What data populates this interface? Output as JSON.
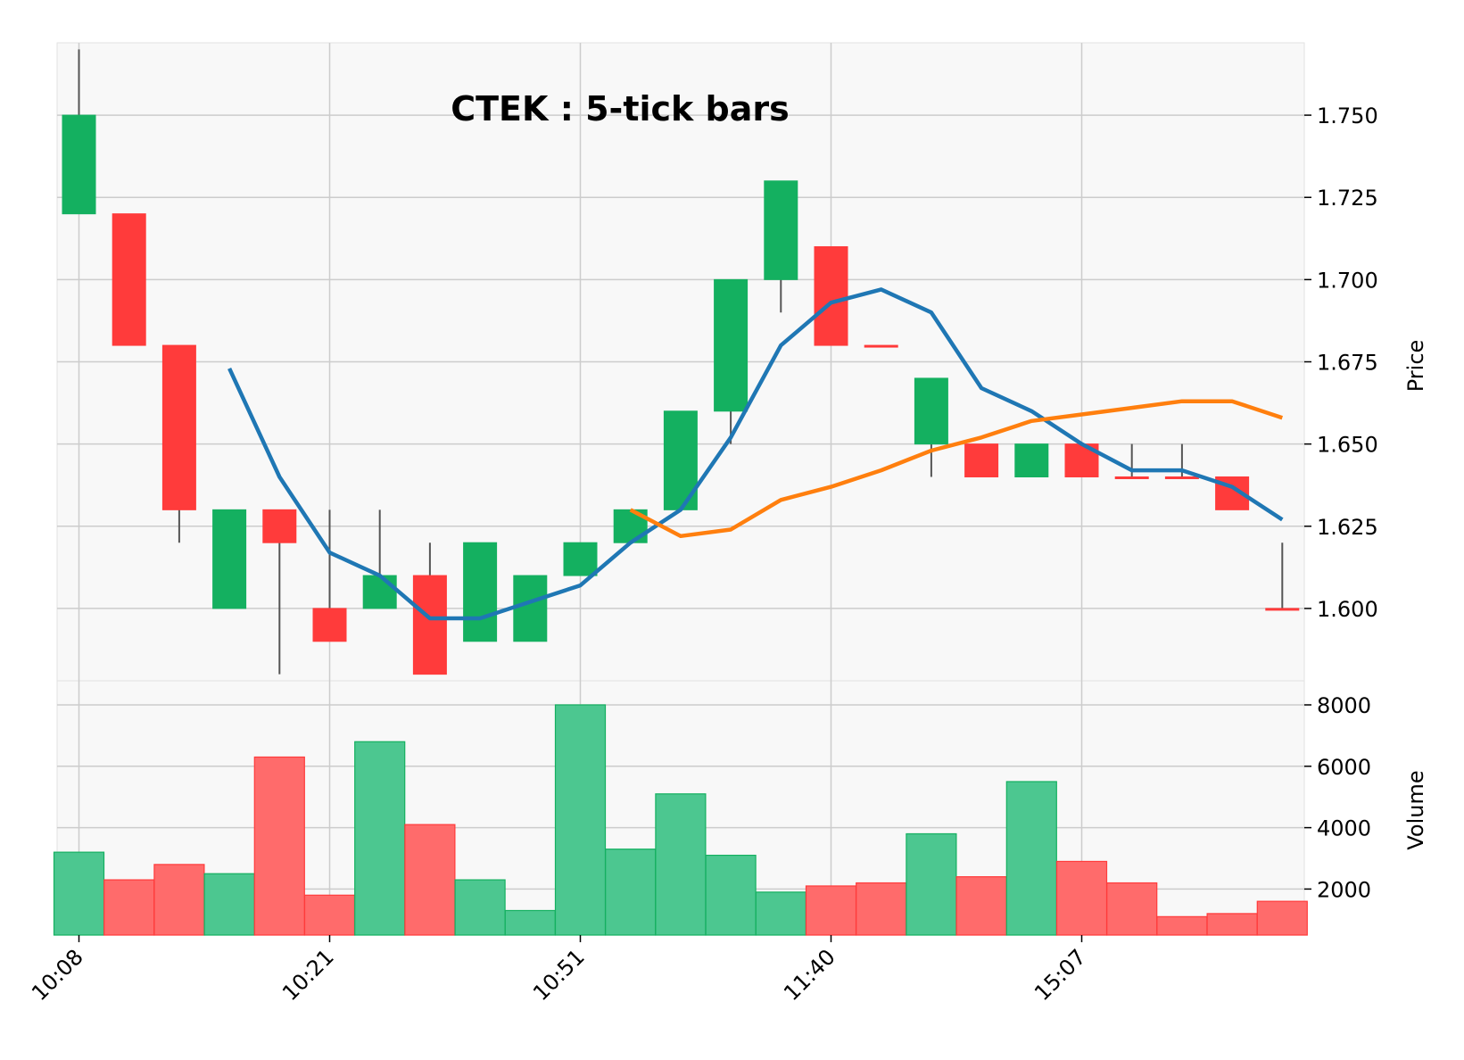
{
  "chart_data": {
    "type": "candlestick",
    "title": "CTEK : 5-tick bars",
    "price_axis": {
      "label": "Price",
      "ylim": [
        1.578,
        1.772
      ],
      "ticks": [
        "1.600",
        "1.625",
        "1.650",
        "1.675",
        "1.700",
        "1.725",
        "1.750"
      ],
      "tick_values": [
        1.6,
        1.625,
        1.65,
        1.675,
        1.7,
        1.725,
        1.75
      ],
      "side": "right"
    },
    "volume_axis": {
      "label": "Volume",
      "ylim": [
        500,
        8000
      ],
      "ticks": [
        "2000",
        "4000",
        "6000",
        "8000"
      ],
      "tick_values": [
        2000,
        4000,
        6000,
        8000
      ],
      "side": "right"
    },
    "x_ticks": [
      {
        "index": 0,
        "label": "10:08"
      },
      {
        "index": 5,
        "label": "10:21"
      },
      {
        "index": 10,
        "label": "10:51"
      },
      {
        "index": 15,
        "label": "11:40"
      },
      {
        "index": 20,
        "label": "15:07"
      }
    ],
    "grid": true,
    "colors": {
      "up": "#14b060",
      "down": "#ff3b3b",
      "up_volume": "#4cc790",
      "down_volume": "#ff6b6b",
      "wick": "#555555",
      "ma_short": "#1f77b4",
      "ma_long": "#ff7f0e",
      "background": "#f8f8f8",
      "grid": "#cccccc"
    },
    "bars": [
      {
        "open": 1.72,
        "high": 1.77,
        "low": 1.72,
        "close": 1.75,
        "volume": 3200
      },
      {
        "open": 1.72,
        "high": 1.72,
        "low": 1.68,
        "close": 1.68,
        "volume": 2300
      },
      {
        "open": 1.68,
        "high": 1.68,
        "low": 1.62,
        "close": 1.63,
        "volume": 2800
      },
      {
        "open": 1.6,
        "high": 1.63,
        "low": 1.6,
        "close": 1.63,
        "volume": 2500
      },
      {
        "open": 1.63,
        "high": 1.63,
        "low": 1.58,
        "close": 1.62,
        "volume": 6300
      },
      {
        "open": 1.6,
        "high": 1.63,
        "low": 1.59,
        "close": 1.59,
        "volume": 1800
      },
      {
        "open": 1.6,
        "high": 1.63,
        "low": 1.6,
        "close": 1.61,
        "volume": 6800
      },
      {
        "open": 1.61,
        "high": 1.62,
        "low": 1.58,
        "close": 1.58,
        "volume": 4100
      },
      {
        "open": 1.59,
        "high": 1.62,
        "low": 1.59,
        "close": 1.62,
        "volume": 2300
      },
      {
        "open": 1.59,
        "high": 1.61,
        "low": 1.59,
        "close": 1.61,
        "volume": 1300
      },
      {
        "open": 1.61,
        "high": 1.62,
        "low": 1.61,
        "close": 1.62,
        "volume": 8000
      },
      {
        "open": 1.62,
        "high": 1.63,
        "low": 1.62,
        "close": 1.63,
        "volume": 3300
      },
      {
        "open": 1.63,
        "high": 1.66,
        "low": 1.63,
        "close": 1.66,
        "volume": 5100
      },
      {
        "open": 1.66,
        "high": 1.7,
        "low": 1.65,
        "close": 1.7,
        "volume": 3100
      },
      {
        "open": 1.7,
        "high": 1.73,
        "low": 1.69,
        "close": 1.73,
        "volume": 1900
      },
      {
        "open": 1.71,
        "high": 1.71,
        "low": 1.68,
        "close": 1.68,
        "volume": 2100
      },
      {
        "open": 1.68,
        "high": 1.68,
        "low": 1.68,
        "close": 1.68,
        "volume": 2200
      },
      {
        "open": 1.65,
        "high": 1.67,
        "low": 1.64,
        "close": 1.67,
        "volume": 3800
      },
      {
        "open": 1.65,
        "high": 1.65,
        "low": 1.64,
        "close": 1.64,
        "volume": 2400
      },
      {
        "open": 1.64,
        "high": 1.65,
        "low": 1.64,
        "close": 1.65,
        "volume": 5500
      },
      {
        "open": 1.65,
        "high": 1.65,
        "low": 1.64,
        "close": 1.64,
        "volume": 2900
      },
      {
        "open": 1.64,
        "high": 1.65,
        "low": 1.64,
        "close": 1.64,
        "volume": 2200
      },
      {
        "open": 1.64,
        "high": 1.65,
        "low": 1.64,
        "close": 1.64,
        "volume": 1100
      },
      {
        "open": 1.64,
        "high": 1.64,
        "low": 1.63,
        "close": 1.63,
        "volume": 1200
      },
      {
        "open": 1.6,
        "high": 1.62,
        "low": 1.6,
        "close": 1.6,
        "volume": 1600
      }
    ],
    "moving_averages": [
      {
        "color": "#1f77b4",
        "start_index": 3,
        "values": [
          1.673,
          1.64,
          1.617,
          1.61,
          1.597,
          1.597,
          1.602,
          1.607,
          1.62,
          1.63,
          1.652,
          1.68,
          1.693,
          1.697,
          1.69,
          1.667,
          1.66,
          1.65,
          1.642,
          1.642,
          1.637,
          1.627
        ]
      },
      {
        "color": "#ff7f0e",
        "start_index": 11,
        "values": [
          1.63,
          1.622,
          1.624,
          1.633,
          1.637,
          1.642,
          1.648,
          1.652,
          1.657,
          1.659,
          1.661,
          1.663,
          1.663,
          1.658
        ]
      }
    ]
  }
}
